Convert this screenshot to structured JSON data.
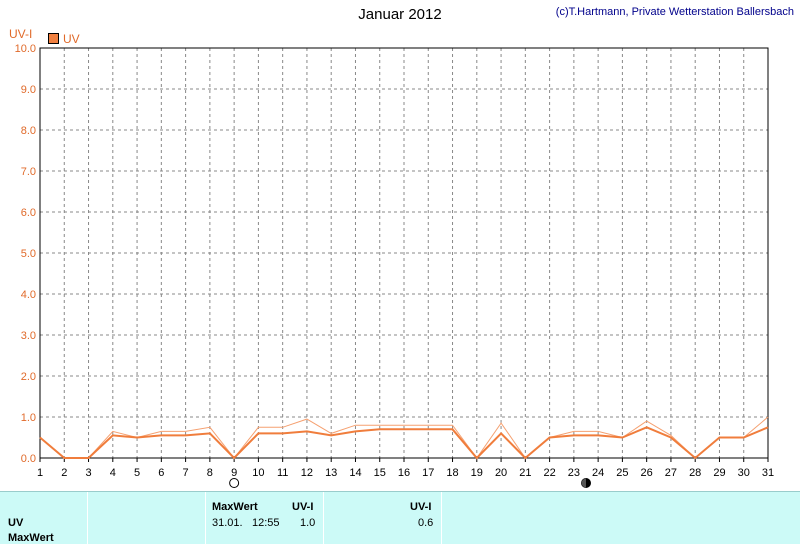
{
  "header": {
    "title": "Januar 2012",
    "copyright": "(c)T.Hartmann, Private Wetterstation Ballersbach"
  },
  "chart_data": {
    "type": "line",
    "ylabel": "UV-I",
    "ylim": [
      0,
      10
    ],
    "yticks": [
      "0.0",
      "1.0",
      "2.0",
      "3.0",
      "4.0",
      "5.0",
      "6.0",
      "7.0",
      "8.0",
      "9.0",
      "10.0"
    ],
    "x": [
      1,
      2,
      3,
      4,
      5,
      6,
      7,
      8,
      9,
      10,
      11,
      12,
      13,
      14,
      15,
      16,
      17,
      18,
      19,
      20,
      21,
      22,
      23,
      24,
      25,
      26,
      27,
      28,
      29,
      30,
      31
    ],
    "xticks": [
      "1",
      "2",
      "3",
      "4",
      "5",
      "6",
      "7",
      "8",
      "9",
      "10",
      "11",
      "12",
      "13",
      "14",
      "15",
      "16",
      "17",
      "18",
      "19",
      "20",
      "21",
      "22",
      "23",
      "24",
      "25",
      "26",
      "27",
      "28",
      "29",
      "30",
      "31"
    ],
    "grid": true,
    "legend_position": "top-left",
    "series": [
      {
        "name": "UV",
        "color": "#f07d3c",
        "values": [
          0.5,
          0,
          0,
          0.55,
          0.5,
          0.55,
          0.55,
          0.6,
          0,
          0.6,
          0.6,
          0.65,
          0.55,
          0.65,
          0.7,
          0.7,
          0.7,
          0.7,
          0,
          0.6,
          0,
          0.5,
          0.55,
          0.55,
          0.5,
          0.75,
          0.5,
          0,
          0.5,
          0.5,
          0.75
        ]
      },
      {
        "color": "#f5a070",
        "values": [
          0.5,
          0,
          0,
          0.65,
          0.5,
          0.65,
          0.65,
          0.75,
          0,
          0.75,
          0.75,
          0.95,
          0.6,
          0.8,
          0.8,
          0.8,
          0.8,
          0.8,
          0,
          0.85,
          0,
          0.5,
          0.65,
          0.65,
          0.5,
          0.9,
          0.55,
          0,
          0.5,
          0.5,
          1.0
        ]
      }
    ],
    "moon_markers": [
      {
        "day": 9,
        "icon": "full-moon-icon"
      },
      {
        "day": 23.5,
        "icon": "new-moon-icon"
      }
    ]
  },
  "footer": {
    "row_label_uv": "UV",
    "row_label_max": "MaxWert",
    "col1_header": "MaxWert",
    "col1_unit": "UV-I",
    "col1_date": "31.01.",
    "col1_time": "12:55",
    "col1_value": "1.0",
    "col2_unit": "UV-I",
    "col2_value": "0.6"
  }
}
